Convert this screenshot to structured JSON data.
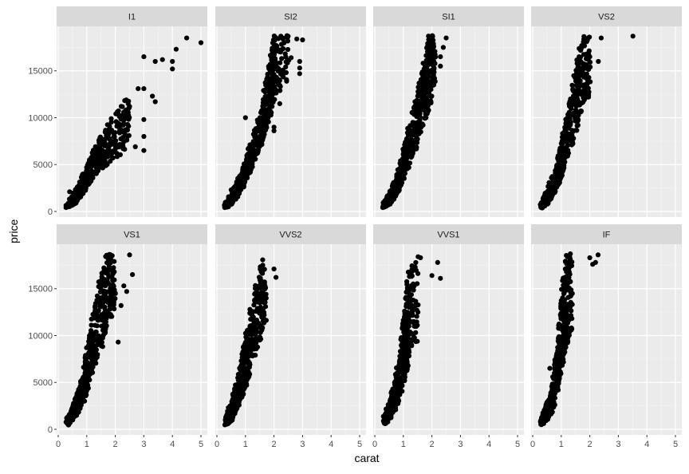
{
  "chart_data": {
    "type": "scatter",
    "title": "",
    "xlabel": "carat",
    "ylabel": "price",
    "facet_by": "clarity",
    "facets": [
      "I1",
      "SI2",
      "SI1",
      "VS2",
      "VS1",
      "VVS2",
      "VVS1",
      "IF"
    ],
    "layout": {
      "rows": 2,
      "cols": 4
    },
    "xlim": [
      0,
      5.1
    ],
    "ylim": [
      0,
      19500
    ],
    "x_ticks": [
      0,
      1,
      2,
      3,
      4,
      5
    ],
    "y_ticks": [
      0,
      5000,
      10000,
      15000
    ],
    "y_tick_labels": [
      "0",
      "5000",
      "10000",
      "15000"
    ],
    "grid": true,
    "panels": [
      {
        "label": "I1",
        "carat_range": [
          0.3,
          5.0
        ],
        "price_range": [
          345,
          18531
        ],
        "bands": [
          [
            0.3,
            400,
            700
          ],
          [
            0.6,
            800,
            2200
          ],
          [
            0.8,
            1500,
            3500
          ],
          [
            1.0,
            2500,
            5000
          ],
          [
            1.2,
            3500,
            6500
          ],
          [
            1.5,
            4500,
            8000
          ],
          [
            2.0,
            5500,
            10500
          ],
          [
            2.5,
            7000,
            12500
          ]
        ],
        "outliers": [
          [
            0.4,
            2100
          ],
          [
            3.0,
            16500
          ],
          [
            3.4,
            16000
          ],
          [
            3.65,
            16200
          ],
          [
            4.0,
            15200
          ],
          [
            4.0,
            16000
          ],
          [
            4.5,
            18500
          ],
          [
            5.0,
            18000
          ],
          [
            4.13,
            17300
          ],
          [
            3.0,
            13100
          ],
          [
            2.8,
            13100
          ],
          [
            3.3,
            12300
          ],
          [
            3.4,
            11700
          ],
          [
            3.0,
            6500
          ],
          [
            2.7,
            6900
          ],
          [
            3.0,
            8000
          ],
          [
            2.5,
            11200
          ],
          [
            3.0,
            9800
          ]
        ]
      },
      {
        "label": "SI2",
        "carat_range": [
          0.25,
          3.0
        ],
        "price_range": [
          326,
          18804
        ],
        "bands": [
          [
            0.3,
            350,
            900
          ],
          [
            0.5,
            700,
            1800
          ],
          [
            0.7,
            1500,
            3200
          ],
          [
            0.9,
            2500,
            4500
          ],
          [
            1.0,
            3300,
            5800
          ],
          [
            1.2,
            4500,
            7500
          ],
          [
            1.5,
            6500,
            10500
          ],
          [
            1.7,
            8500,
            13500
          ],
          [
            1.9,
            10500,
            17000
          ],
          [
            2.0,
            12000,
            18800
          ],
          [
            2.5,
            14000,
            18800
          ]
        ],
        "outliers": [
          [
            1.0,
            10000
          ],
          [
            0.5,
            2300
          ],
          [
            2.0,
            8600
          ],
          [
            2.0,
            9000
          ],
          [
            2.2,
            11500
          ],
          [
            2.6,
            16400
          ],
          [
            2.9,
            15300
          ],
          [
            2.9,
            16000
          ],
          [
            3.0,
            18300
          ],
          [
            2.8,
            18400
          ],
          [
            2.9,
            14700
          ]
        ]
      },
      {
        "label": "SI1",
        "carat_range": [
          0.21,
          2.5
        ],
        "price_range": [
          326,
          18818
        ],
        "bands": [
          [
            0.3,
            350,
            900
          ],
          [
            0.5,
            700,
            1900
          ],
          [
            0.7,
            1500,
            3300
          ],
          [
            0.9,
            2600,
            5000
          ],
          [
            1.0,
            3500,
            6500
          ],
          [
            1.2,
            5000,
            9000
          ],
          [
            1.5,
            7000,
            12500
          ],
          [
            1.7,
            9000,
            15500
          ],
          [
            1.9,
            11000,
            18800
          ],
          [
            2.1,
            13000,
            18800
          ]
        ],
        "outliers": [
          [
            0.5,
            1800
          ],
          [
            2.3,
            15500
          ],
          [
            2.4,
            17500
          ],
          [
            2.5,
            18500
          ],
          [
            2.3,
            16500
          ]
        ]
      },
      {
        "label": "VS2",
        "carat_range": [
          0.2,
          3.51
        ],
        "price_range": [
          334,
          18823
        ],
        "bands": [
          [
            0.3,
            350,
            900
          ],
          [
            0.5,
            800,
            2200
          ],
          [
            0.7,
            1700,
            3800
          ],
          [
            0.9,
            2800,
            5600
          ],
          [
            1.0,
            3800,
            7500
          ],
          [
            1.2,
            5500,
            10500
          ],
          [
            1.5,
            8000,
            15000
          ],
          [
            1.7,
            10500,
            18800
          ],
          [
            2.0,
            12500,
            18800
          ]
        ],
        "outliers": [
          [
            3.51,
            18700
          ],
          [
            2.4,
            18500
          ],
          [
            2.3,
            16000
          ],
          [
            2.0,
            16500
          ]
        ]
      },
      {
        "label": "VS1",
        "carat_range": [
          0.23,
          2.59
        ],
        "price_range": [
          327,
          18795
        ],
        "bands": [
          [
            0.3,
            350,
            1000
          ],
          [
            0.5,
            800,
            2400
          ],
          [
            0.7,
            1800,
            4200
          ],
          [
            0.9,
            3000,
            6500
          ],
          [
            1.0,
            4000,
            8500
          ],
          [
            1.2,
            6000,
            12000
          ],
          [
            1.5,
            8500,
            16500
          ],
          [
            1.7,
            11000,
            18800
          ],
          [
            2.0,
            13000,
            18800
          ]
        ],
        "outliers": [
          [
            2.6,
            16500
          ],
          [
            2.2,
            13200
          ],
          [
            2.1,
            9300
          ],
          [
            2.5,
            18600
          ],
          [
            2.3,
            15300
          ],
          [
            2.4,
            14700
          ]
        ]
      },
      {
        "label": "VVS2",
        "carat_range": [
          0.23,
          2.07
        ],
        "price_range": [
          336,
          18768
        ],
        "bands": [
          [
            0.3,
            400,
            1100
          ],
          [
            0.5,
            900,
            2800
          ],
          [
            0.7,
            2000,
            5000
          ],
          [
            0.9,
            3500,
            8000
          ],
          [
            1.0,
            4500,
            10000
          ],
          [
            1.2,
            6500,
            13500
          ],
          [
            1.5,
            9000,
            17000
          ],
          [
            1.7,
            11500,
            18800
          ]
        ],
        "outliers": [
          [
            2.07,
            16200
          ],
          [
            2.0,
            17100
          ],
          [
            0.4,
            2300
          ]
        ]
      },
      {
        "label": "VVS1",
        "carat_range": [
          0.23,
          2.3
        ],
        "price_range": [
          336,
          18777
        ],
        "bands": [
          [
            0.3,
            400,
            1100
          ],
          [
            0.5,
            900,
            2800
          ],
          [
            0.7,
            2000,
            5200
          ],
          [
            0.9,
            3500,
            9000
          ],
          [
            1.0,
            4500,
            11500
          ],
          [
            1.1,
            6000,
            14500
          ],
          [
            1.2,
            7500,
            17000
          ],
          [
            1.5,
            9500,
            18800
          ]
        ],
        "outliers": [
          [
            2.2,
            17800
          ],
          [
            2.3,
            16100
          ],
          [
            2.0,
            16400
          ],
          [
            1.6,
            18300
          ]
        ]
      },
      {
        "label": "IF",
        "carat_range": [
          0.23,
          2.29
        ],
        "price_range": [
          369,
          18806
        ],
        "bands": [
          [
            0.3,
            400,
            1100
          ],
          [
            0.5,
            1000,
            2800
          ],
          [
            0.7,
            2000,
            4800
          ],
          [
            0.9,
            4500,
            9500
          ],
          [
            1.0,
            6000,
            13500
          ],
          [
            1.1,
            7500,
            17000
          ],
          [
            1.2,
            9000,
            18800
          ],
          [
            1.4,
            10000,
            18800
          ]
        ],
        "outliers": [
          [
            2.29,
            18600
          ],
          [
            2.2,
            17800
          ],
          [
            2.0,
            18300
          ],
          [
            2.1,
            17600
          ],
          [
            0.6,
            6500
          ],
          [
            0.7,
            5600
          ]
        ]
      }
    ]
  },
  "axes": {
    "x_title": "carat",
    "y_title": "price"
  },
  "colors": {
    "panel_bg": "#ebebeb",
    "strip_bg": "#d9d9d9",
    "grid_major": "#ffffff",
    "point": "#000000",
    "tick_text": "#4d4d4d"
  }
}
